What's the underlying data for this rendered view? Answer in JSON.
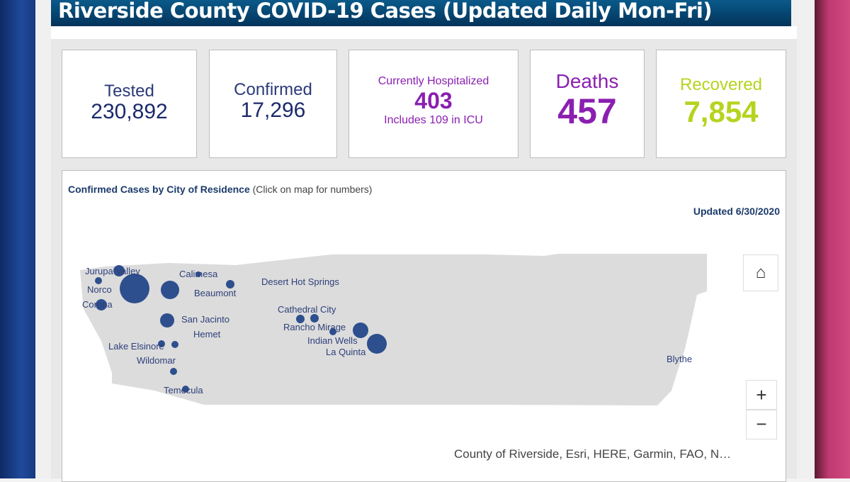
{
  "header": {
    "title": "Riverside County COVID-19 Cases (Updated Daily Mon-Fri)"
  },
  "cards": {
    "tested": {
      "label": "Tested",
      "value": "230,892"
    },
    "confirmed": {
      "label": "Confirmed",
      "value": "17,296"
    },
    "hospitalized": {
      "label": "Currently Hospitalized",
      "value": "403",
      "note": "Includes 109 in ICU"
    },
    "deaths": {
      "label": "Deaths",
      "value": "457"
    },
    "recovered": {
      "label": "Recovered",
      "value": "7,854"
    }
  },
  "colors": {
    "navy": "#1b2a6b",
    "purple": "#8a1fb0",
    "green": "#b5d41e",
    "bubble": "#2e4f8e"
  },
  "map": {
    "title": "Confirmed Cases by City of Residence",
    "subtitle": "(Click on map for numbers)",
    "updated": "Updated 6/30/2020",
    "attribution": "County of Riverside, Esri, HERE, Garmin, FAO, N…",
    "zoom_in": "+",
    "zoom_out": "−",
    "cities": [
      "Jurupa Valley",
      "Norco",
      "Corona",
      "Calimesa",
      "Beaumont",
      "San Jacinto",
      "Hemet",
      "Lake Elsinore",
      "Wildomar",
      "Temecula",
      "Desert Hot Springs",
      "Cathedral City",
      "Rancho Mirage",
      "Indian Wells",
      "La Quinta",
      "Blythe"
    ]
  }
}
